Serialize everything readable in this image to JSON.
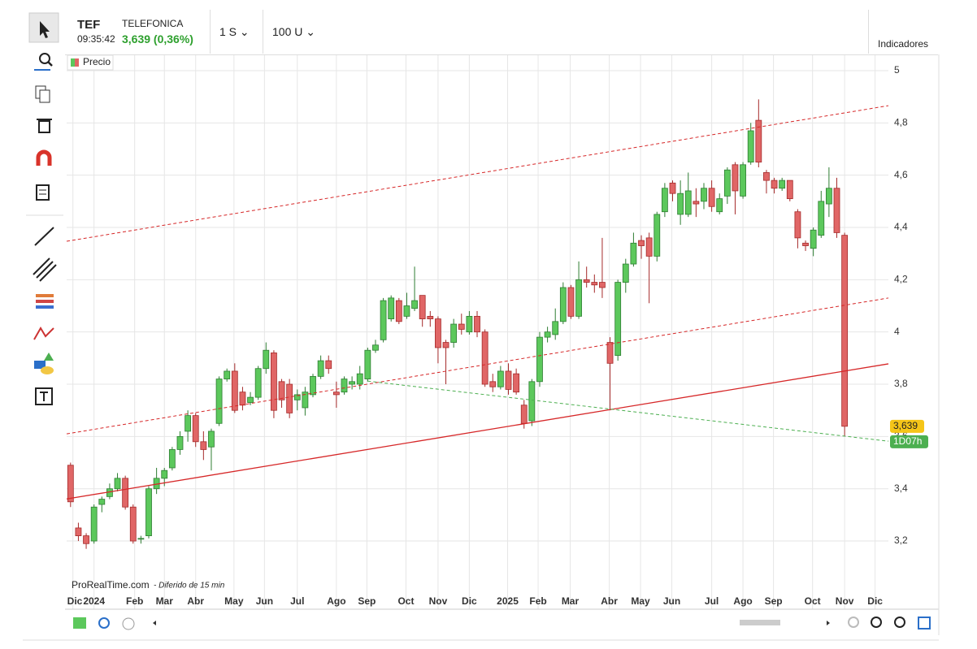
{
  "header": {
    "symbol": "TEF",
    "time": "09:35:42",
    "name": "TELEFONICA",
    "quote": "3,639 (0,36%)",
    "period": "1 S",
    "units": "100 U",
    "indicators": "Indicadores"
  },
  "watermark": {
    "site": "ProRealTime.com",
    "note": "- Diferido de 15 min"
  },
  "chart_data": {
    "type": "candlestick",
    "series": [
      {
        "name": "Precio",
        "up_color": "#5cc85c",
        "down_color": "#e06666",
        "open": [
          3.49,
          3.25,
          3.22,
          3.2,
          3.34,
          3.37,
          3.4,
          3.44,
          3.33,
          3.21,
          3.22,
          3.4,
          3.44,
          3.48,
          3.55,
          3.62,
          3.68,
          3.58,
          3.56,
          3.65,
          3.82,
          3.85,
          3.77,
          3.73,
          3.75,
          3.86,
          3.92,
          3.81,
          3.8,
          3.74,
          3.71,
          3.76,
          3.83,
          3.89,
          3.77,
          3.77,
          3.8,
          3.8,
          3.82,
          3.93,
          3.97,
          4.05,
          4.12,
          4.06,
          4.09,
          4.14,
          4.06,
          4.05,
          3.96,
          3.96,
          4.03,
          4.0,
          4.06,
          4.0,
          3.81,
          3.79,
          3.85,
          3.84,
          3.72,
          3.66,
          3.81,
          3.98,
          3.99,
          4.04,
          4.17,
          4.06,
          4.2,
          4.19,
          4.19,
          3.96,
          3.91,
          4.19,
          4.26,
          4.35,
          4.36,
          4.29,
          4.46,
          4.57,
          4.45,
          4.45,
          4.5,
          4.5,
          4.55,
          4.46,
          4.52,
          4.64,
          4.52,
          4.65,
          4.81,
          4.61,
          4.58,
          4.55,
          4.58,
          4.46,
          4.34,
          4.32,
          4.37,
          4.49,
          4.55,
          4.37
        ],
        "high": [
          3.5,
          3.27,
          3.23,
          3.34,
          3.37,
          3.42,
          3.46,
          3.45,
          3.34,
          3.22,
          3.41,
          3.48,
          3.48,
          3.56,
          3.62,
          3.7,
          3.69,
          3.62,
          3.63,
          3.83,
          3.86,
          3.88,
          3.79,
          3.77,
          3.87,
          3.96,
          3.93,
          3.82,
          3.82,
          3.78,
          3.79,
          3.84,
          3.91,
          3.91,
          3.81,
          3.83,
          3.83,
          3.87,
          3.94,
          3.97,
          4.13,
          4.14,
          4.13,
          4.15,
          4.25,
          4.14,
          4.08,
          4.06,
          3.97,
          4.05,
          4.07,
          4.08,
          4.08,
          4.01,
          3.84,
          3.87,
          3.88,
          3.86,
          3.74,
          3.82,
          4.0,
          4.02,
          4.09,
          4.19,
          4.18,
          4.27,
          4.25,
          4.22,
          4.36,
          3.98,
          4.2,
          4.28,
          4.38,
          4.37,
          4.38,
          4.46,
          4.57,
          4.58,
          4.58,
          4.61,
          4.55,
          4.57,
          4.58,
          4.53,
          4.63,
          4.65,
          4.65,
          4.8,
          4.89,
          4.62,
          4.59,
          4.59,
          4.58,
          4.47,
          4.35,
          4.4,
          4.54,
          4.63,
          4.59,
          4.38
        ],
        "low": [
          3.33,
          3.2,
          3.17,
          3.19,
          3.31,
          3.36,
          3.39,
          3.32,
          3.19,
          3.19,
          3.21,
          3.38,
          3.41,
          3.47,
          3.53,
          3.58,
          3.56,
          3.51,
          3.47,
          3.64,
          3.81,
          3.69,
          3.7,
          3.72,
          3.74,
          3.84,
          3.67,
          3.71,
          3.67,
          3.7,
          3.68,
          3.75,
          3.82,
          3.84,
          3.71,
          3.76,
          3.78,
          3.78,
          3.81,
          3.92,
          3.96,
          4.04,
          4.03,
          4.05,
          4.08,
          4.02,
          4.02,
          3.88,
          3.8,
          3.94,
          3.99,
          3.99,
          3.98,
          3.79,
          3.77,
          3.78,
          3.76,
          3.76,
          3.63,
          3.64,
          3.79,
          3.96,
          3.97,
          4.03,
          4.05,
          4.05,
          4.17,
          4.15,
          4.13,
          3.7,
          3.89,
          4.15,
          4.25,
          4.28,
          4.11,
          4.27,
          4.44,
          4.5,
          4.41,
          4.44,
          4.44,
          4.47,
          4.46,
          4.45,
          4.49,
          4.45,
          4.51,
          4.64,
          4.63,
          4.53,
          4.53,
          4.54,
          4.5,
          4.32,
          4.31,
          4.29,
          4.36,
          4.44,
          4.36,
          3.6
        ],
        "close": [
          3.35,
          3.22,
          3.19,
          3.33,
          3.36,
          3.4,
          3.44,
          3.33,
          3.2,
          3.21,
          3.4,
          3.44,
          3.47,
          3.55,
          3.6,
          3.68,
          3.58,
          3.55,
          3.62,
          3.82,
          3.85,
          3.7,
          3.72,
          3.75,
          3.86,
          3.93,
          3.7,
          3.74,
          3.69,
          3.76,
          3.77,
          3.83,
          3.89,
          3.86,
          3.76,
          3.82,
          3.81,
          3.84,
          3.93,
          3.95,
          4.12,
          4.13,
          4.04,
          4.1,
          4.12,
          4.05,
          4.05,
          3.94,
          3.94,
          4.03,
          4.01,
          4.06,
          4.0,
          3.8,
          3.79,
          3.85,
          3.78,
          3.77,
          3.65,
          3.81,
          3.98,
          4.0,
          4.04,
          4.17,
          4.06,
          4.2,
          4.19,
          4.18,
          4.17,
          3.88,
          4.19,
          4.26,
          4.34,
          4.33,
          4.29,
          4.45,
          4.55,
          4.53,
          4.53,
          4.54,
          4.49,
          4.55,
          4.48,
          4.51,
          4.62,
          4.54,
          4.64,
          4.77,
          4.65,
          4.58,
          4.55,
          4.58,
          4.51,
          4.36,
          4.33,
          4.39,
          4.5,
          4.55,
          4.38,
          3.639
        ]
      }
    ],
    "last_label": "3,639",
    "countdown": "1D07h",
    "trendlines": [
      {
        "x": [
          -0.5,
          104.6
        ],
        "y": [
          3.361,
          3.878
        ],
        "color": "#d62728",
        "dashed": false
      },
      {
        "x": [
          -0.5,
          104.6
        ],
        "y": [
          4.347,
          4.866
        ],
        "color": "#d62728",
        "dashed": true
      },
      {
        "x": [
          -0.5,
          104.6
        ],
        "y": [
          3.61,
          4.13
        ],
        "color": "#d62728",
        "dashed": true
      },
      {
        "x": [
          38,
          104.6
        ],
        "y": [
          3.812,
          3.582
        ],
        "color": "#4caf50",
        "dashed": true
      }
    ],
    "xlim": [
      -0.5,
      104.6
    ],
    "xticks": [
      {
        "value": 0.3,
        "label": "Dic"
      },
      {
        "value": 3,
        "label": "2024"
      },
      {
        "value": 8.2,
        "label": "Feb"
      },
      {
        "value": 12,
        "label": "Mar"
      },
      {
        "value": 16,
        "label": "Abr"
      },
      {
        "value": 20.9,
        "label": "May"
      },
      {
        "value": 24.8,
        "label": "Jun"
      },
      {
        "value": 29,
        "label": "Jul"
      },
      {
        "value": 34,
        "label": "Ago"
      },
      {
        "value": 37.9,
        "label": "Sep"
      },
      {
        "value": 42.9,
        "label": "Oct"
      },
      {
        "value": 47,
        "label": "Nov"
      },
      {
        "value": 51,
        "label": "Dic"
      },
      {
        "value": 55.9,
        "label": "2025"
      },
      {
        "value": 59.8,
        "label": "Feb"
      },
      {
        "value": 63.9,
        "label": "Mar"
      },
      {
        "value": 68.9,
        "label": "Abr"
      },
      {
        "value": 72.9,
        "label": "May"
      },
      {
        "value": 76.9,
        "label": "Jun"
      },
      {
        "value": 82,
        "label": "Jul"
      },
      {
        "value": 86,
        "label": "Ago"
      },
      {
        "value": 89.9,
        "label": "Sep"
      },
      {
        "value": 94.9,
        "label": "Oct"
      },
      {
        "value": 99,
        "label": "Nov"
      },
      {
        "value": 102.9,
        "label": "Dic"
      }
    ],
    "ylim": [
      2.995,
      5.059
    ],
    "yticks": [
      {
        "value": 3.2,
        "label": "3,2"
      },
      {
        "value": 3.4,
        "label": "3,4"
      },
      {
        "value": 3.6,
        "label": "3,6"
      },
      {
        "value": 3.8,
        "label": "3,8"
      },
      4,
      {
        "value": 4.2,
        "label": "4,2"
      },
      {
        "value": 4.4,
        "label": "4,4"
      },
      {
        "value": 4.6,
        "label": "4,6"
      },
      {
        "value": 4.8,
        "label": "4,8"
      },
      5
    ],
    "grid": true
  }
}
